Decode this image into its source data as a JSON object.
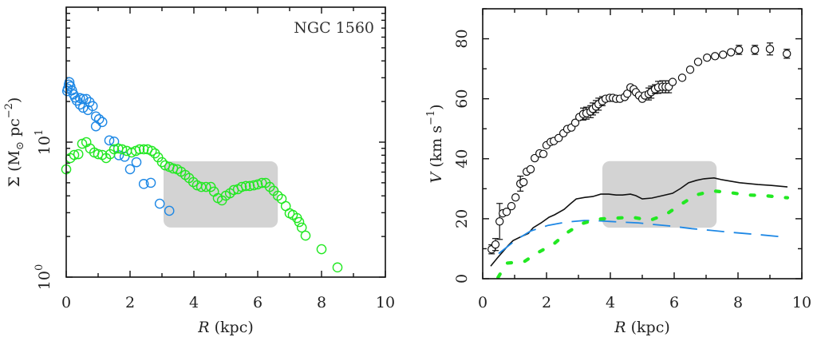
{
  "chart_data": [
    {
      "type": "scatter",
      "panel": "left",
      "annotation": "NGC 1560",
      "xlabel": "R (kpc)",
      "xlabel_parts": {
        "var": "R",
        "unit": " (kpc)"
      },
      "ylabel": "Σ (M⊙ pc⁻²)",
      "ylabel_parts": {
        "sym": "Σ",
        "open": " (M",
        "sun": "⊙",
        "mid": " pc",
        "exp": "−2",
        "close": ")"
      },
      "yscale": "log",
      "xlim": [
        0,
        10
      ],
      "ylim": [
        1,
        100
      ],
      "xticks": [
        0,
        2,
        4,
        6,
        8,
        10
      ],
      "xtick_labels": [
        "0",
        "2",
        "4",
        "6",
        "8",
        "10"
      ],
      "yticks": [
        1,
        10
      ],
      "ytick_labels": [
        {
          "base": "10",
          "exp": "0"
        },
        {
          "base": "10",
          "exp": "1"
        }
      ],
      "highlight_box": {
        "x": [
          3.05,
          6.63
        ],
        "y": [
          2.33,
          7.21
        ],
        "color": "#d3d3d3"
      },
      "series": [
        {
          "name": "blue profile",
          "color": "#1e88e5",
          "marker": "open-circle",
          "x": [
            0.03,
            0.05,
            0.08,
            0.1,
            0.13,
            0.18,
            0.23,
            0.28,
            0.33,
            0.43,
            0.53,
            0.63,
            0.43,
            0.73,
            0.83,
            0.53,
            0.68,
            0.93,
            1.03,
            1.13,
            0.93,
            1.35,
            1.5,
            1.65,
            1.83,
            2.0,
            2.2,
            2.43,
            2.65,
            2.93,
            3.23
          ],
          "y": [
            23.9,
            24.9,
            26.7,
            27.8,
            25.9,
            24.2,
            22.6,
            21.4,
            20.3,
            21.2,
            20.9,
            20.9,
            19.0,
            19.8,
            18.5,
            18.0,
            17.3,
            15.5,
            14.8,
            14.1,
            13.1,
            10.3,
            10.1,
            8.0,
            7.8,
            6.3,
            7.1,
            4.9,
            5.0,
            3.5,
            3.1
          ]
        },
        {
          "name": "green profile",
          "color": "#22e822",
          "marker": "open-circle",
          "x": [
            0.0,
            0.13,
            0.25,
            0.38,
            0.5,
            0.63,
            0.75,
            0.88,
            1.0,
            1.13,
            1.25,
            1.38,
            1.5,
            1.63,
            1.75,
            1.9,
            2.05,
            2.18,
            2.3,
            2.43,
            2.55,
            2.68,
            2.78,
            2.88,
            3.0,
            3.1,
            3.23,
            3.35,
            3.48,
            3.6,
            3.73,
            3.85,
            3.98,
            4.1,
            4.23,
            4.38,
            4.53,
            4.63,
            4.75,
            4.88,
            5.0,
            5.13,
            5.25,
            5.38,
            5.5,
            5.63,
            5.75,
            5.88,
            6.0,
            6.13,
            6.25,
            6.38,
            6.5,
            6.63,
            6.75,
            6.88,
            7.0,
            7.1,
            7.23,
            7.3,
            7.38,
            7.5,
            8.0,
            8.5
          ],
          "y": [
            6.29,
            7.62,
            8.04,
            8.15,
            9.73,
            10.0,
            8.97,
            8.38,
            8.15,
            8.04,
            7.62,
            8.15,
            8.85,
            8.97,
            8.85,
            8.61,
            8.38,
            8.61,
            8.85,
            8.85,
            8.85,
            8.61,
            8.26,
            7.72,
            7.11,
            6.73,
            6.56,
            6.38,
            6.29,
            6.04,
            5.72,
            5.42,
            5.06,
            4.79,
            4.66,
            4.66,
            4.66,
            4.3,
            3.85,
            3.7,
            4.01,
            4.18,
            4.42,
            4.48,
            4.66,
            4.73,
            4.73,
            4.79,
            4.86,
            4.99,
            4.99,
            4.66,
            4.36,
            4.01,
            3.8,
            3.36,
            2.97,
            2.89,
            2.74,
            2.56,
            2.33,
            2.03,
            1.61,
            1.18
          ]
        }
      ]
    },
    {
      "type": "line",
      "panel": "right",
      "xlabel": "R (kpc)",
      "xlabel_parts": {
        "var": "R",
        "unit": " (kpc)"
      },
      "ylabel": "V (km s⁻¹)",
      "ylabel_parts": {
        "var": "V",
        "unit": " (km s",
        "exp": "−1",
        "close": ")"
      },
      "xlim": [
        0,
        10
      ],
      "ylim": [
        0,
        90
      ],
      "xticks": [
        0,
        2,
        4,
        6,
        8,
        10
      ],
      "xtick_labels": [
        "0",
        "2",
        "4",
        "6",
        "8",
        "10"
      ],
      "yticks": [
        0,
        20,
        40,
        60,
        80
      ],
      "ytick_labels": [
        "0",
        "20",
        "40",
        "60",
        "80"
      ],
      "highlight_box": {
        "x": [
          3.75,
          7.33
        ],
        "y": [
          17.0,
          39.2
        ],
        "color": "#d3d3d3"
      },
      "series": [
        {
          "name": "observed rotation curve",
          "style": "open-circle-with-errorbars",
          "color": "#111111",
          "x": [
            0.28,
            0.4,
            0.53,
            0.63,
            0.75,
            0.9,
            1.03,
            1.18,
            1.28,
            1.38,
            1.5,
            1.63,
            1.78,
            1.9,
            2.0,
            2.13,
            2.23,
            2.38,
            2.53,
            2.65,
            2.78,
            2.9,
            3.03,
            3.15,
            3.25,
            3.38,
            3.45,
            3.55,
            3.63,
            3.75,
            3.85,
            3.98,
            4.08,
            4.18,
            4.3,
            4.45,
            4.53,
            4.63,
            4.73,
            4.8,
            4.9,
            5.0,
            5.08,
            5.2,
            5.28,
            5.4,
            5.5,
            5.63,
            5.73,
            5.83,
            5.95,
            6.25,
            6.5,
            6.75,
            7.03,
            7.28,
            7.53,
            7.78,
            8.03,
            8.53,
            9.0,
            9.53
          ],
          "y": [
            9.8,
            11.4,
            19.1,
            21.8,
            22.3,
            24.2,
            27.1,
            31.7,
            32.2,
            35.7,
            36.5,
            40.2,
            41.8,
            41.6,
            44.5,
            45.6,
            45.9,
            46.9,
            48.5,
            49.9,
            50.4,
            52.0,
            53.9,
            54.9,
            55.2,
            55.7,
            56.6,
            57.4,
            58.2,
            59.2,
            60.0,
            60.3,
            60.3,
            60.0,
            60.0,
            60.6,
            61.7,
            63.8,
            63.2,
            62.2,
            61.1,
            60.0,
            61.1,
            61.6,
            62.2,
            63.2,
            63.8,
            64.0,
            64.0,
            64.0,
            65.6,
            67.0,
            69.7,
            72.3,
            73.7,
            74.2,
            74.7,
            75.5,
            76.3,
            76.3,
            76.6,
            75.0
          ],
          "err": [
            1.5,
            2.0,
            6.0,
            1.0,
            1.0,
            1.0,
            1.0,
            2.5,
            1.0,
            1.0,
            1.0,
            1.0,
            1.0,
            1.0,
            1.0,
            1.0,
            1.0,
            1.0,
            1.0,
            1.0,
            1.0,
            1.0,
            1.0,
            2.0,
            2.0,
            2.0,
            2.0,
            2.0,
            2.0,
            1.5,
            1.0,
            1.0,
            1.0,
            1.0,
            1.0,
            1.0,
            1.0,
            1.0,
            1.0,
            1.0,
            1.0,
            1.0,
            1.0,
            2.0,
            2.0,
            1.5,
            2.0,
            2.0,
            2.0,
            2.0,
            1.0,
            1.0,
            1.0,
            1.0,
            1.0,
            1.0,
            1.0,
            1.0,
            1.5,
            1.5,
            2.0,
            1.5
          ]
        },
        {
          "name": "total model",
          "style": "solid",
          "color": "#111111",
          "x": [
            0.25,
            0.45,
            0.63,
            0.8,
            0.95,
            1.2,
            1.43,
            1.58,
            1.83,
            2.08,
            2.25,
            2.55,
            2.75,
            2.93,
            3.2,
            3.45,
            3.7,
            3.95,
            4.18,
            4.38,
            4.63,
            4.8,
            5.0,
            5.3,
            5.63,
            5.95,
            6.2,
            6.45,
            6.7,
            6.93,
            7.25,
            7.5,
            8.05,
            8.63,
            9.05,
            9.55
          ],
          "y": [
            4.2,
            6.8,
            9.0,
            11.1,
            12.7,
            14.0,
            15.1,
            17.0,
            18.6,
            20.5,
            21.3,
            23.1,
            25.0,
            26.6,
            27.1,
            27.4,
            28.2,
            28.2,
            27.9,
            27.9,
            28.2,
            27.7,
            26.6,
            26.9,
            27.7,
            28.5,
            30.1,
            32.0,
            32.8,
            33.3,
            33.6,
            33.0,
            32.0,
            31.4,
            31.1,
            30.6
          ]
        },
        {
          "name": "blue dashed component",
          "style": "dashed",
          "color": "#1e88e5",
          "x": [
            0.5,
            1.05,
            1.5,
            2.05,
            2.63,
            3.18,
            3.45,
            4.3,
            4.88,
            5.43,
            5.95,
            6.55,
            7.08,
            7.63,
            8.2,
            8.75,
            9.33,
            9.55
          ],
          "y": [
            8.4,
            13.0,
            15.9,
            17.8,
            18.9,
            19.4,
            19.4,
            18.9,
            18.6,
            18.0,
            17.5,
            16.7,
            16.2,
            15.6,
            15.1,
            14.6,
            14.0,
            13.8
          ]
        },
        {
          "name": "green dotted component",
          "style": "dotted",
          "color": "#22e822",
          "x": [
            0.48,
            0.75,
            1.3,
            1.73,
            2.23,
            2.65,
            3.08,
            3.63,
            4.18,
            4.7,
            5.23,
            5.75,
            6.2,
            6.68,
            7.2,
            7.75,
            8.3,
            8.85,
            9.4,
            9.55
          ],
          "y": [
            0.4,
            5.2,
            5.7,
            8.7,
            11.6,
            15.4,
            18.3,
            19.9,
            20.2,
            20.5,
            19.4,
            21.5,
            24.7,
            27.9,
            29.3,
            28.7,
            27.9,
            27.7,
            27.1,
            27.0
          ]
        }
      ]
    }
  ]
}
